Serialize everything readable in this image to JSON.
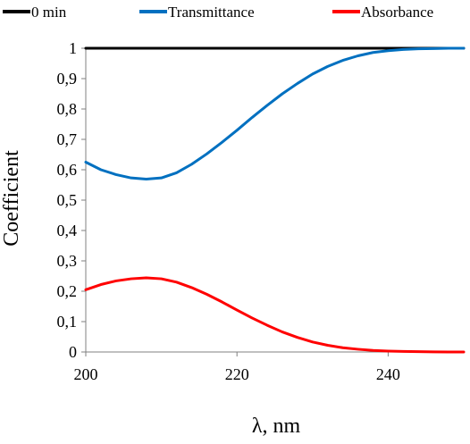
{
  "chart_data": {
    "type": "line",
    "title": "",
    "xlabel": "λ, nm",
    "ylabel": "Coefficient",
    "xlim": [
      200,
      250
    ],
    "ylim": [
      0,
      1
    ],
    "x_ticks": [
      200,
      220,
      240
    ],
    "x_tick_labels": [
      "200",
      "220",
      "240"
    ],
    "y_ticks": [
      0,
      0.1,
      0.2,
      0.3,
      0.4,
      0.5,
      0.6,
      0.7,
      0.8,
      0.9,
      1
    ],
    "y_tick_labels": [
      "0",
      "0,1",
      "0,2",
      "0,3",
      "0,4",
      "0,5",
      "0,6",
      "0,7",
      "0,8",
      "0,9",
      "1"
    ],
    "grid": false,
    "legend_position": "top",
    "series": [
      {
        "name": "0 min",
        "color": "#000000",
        "x": [
          200,
          250
        ],
        "y": [
          1.0,
          1.0
        ]
      },
      {
        "name": "Transmittance",
        "color": "#0070C0",
        "x": [
          200,
          202,
          204,
          206,
          208,
          210,
          212,
          214,
          216,
          218,
          220,
          222,
          224,
          226,
          228,
          230,
          232,
          234,
          236,
          238,
          240,
          242,
          244,
          246,
          248,
          250
        ],
        "y": [
          0.625,
          0.6,
          0.584,
          0.573,
          0.569,
          0.573,
          0.59,
          0.618,
          0.652,
          0.69,
          0.73,
          0.772,
          0.812,
          0.85,
          0.884,
          0.915,
          0.94,
          0.96,
          0.975,
          0.986,
          0.992,
          0.996,
          0.998,
          0.999,
          1.0,
          1.0
        ]
      },
      {
        "name": "Absorbance",
        "color": "#FF0000",
        "x": [
          200,
          202,
          204,
          206,
          208,
          210,
          212,
          214,
          216,
          218,
          220,
          222,
          224,
          226,
          228,
          230,
          232,
          234,
          236,
          238,
          240,
          242,
          244,
          246,
          248,
          250
        ],
        "y": [
          0.205,
          0.222,
          0.234,
          0.241,
          0.244,
          0.241,
          0.23,
          0.212,
          0.19,
          0.165,
          0.138,
          0.112,
          0.088,
          0.066,
          0.048,
          0.033,
          0.022,
          0.014,
          0.009,
          0.005,
          0.003,
          0.002,
          0.001,
          0.0005,
          0.0,
          0.0
        ]
      }
    ]
  }
}
